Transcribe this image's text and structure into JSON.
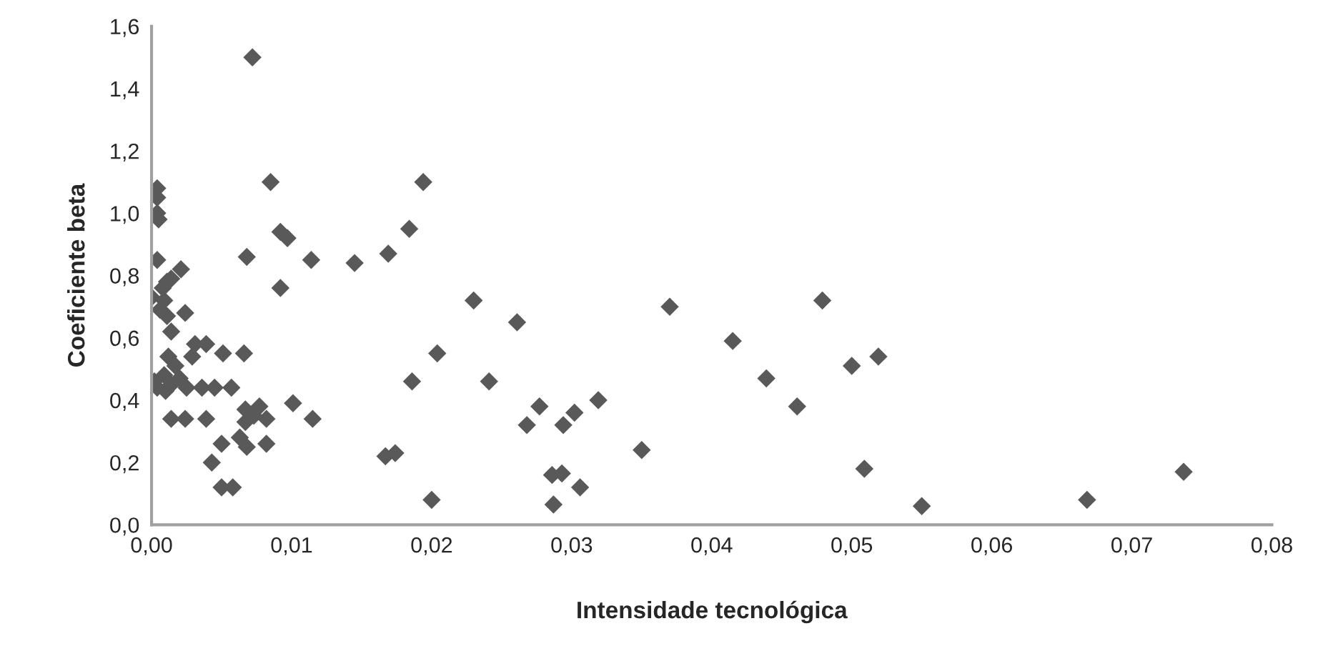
{
  "chart_data": {
    "type": "scatter",
    "xlabel": "Intensidade tecnológica",
    "ylabel": "Coeficiente beta",
    "xlim": [
      0,
      0.08
    ],
    "ylim": [
      0,
      1.6
    ],
    "xticks": [
      {
        "value": 0,
        "label": "0,00"
      },
      {
        "value": 0.01,
        "label": "0,01"
      },
      {
        "value": 0.02,
        "label": "0,02"
      },
      {
        "value": 0.03,
        "label": "0,03"
      },
      {
        "value": 0.04,
        "label": "0,04"
      },
      {
        "value": 0.05,
        "label": "0,05"
      },
      {
        "value": 0.06,
        "label": "0,06"
      },
      {
        "value": 0.07,
        "label": "0,07"
      },
      {
        "value": 0.08,
        "label": "0,08"
      }
    ],
    "yticks": [
      {
        "value": 0,
        "label": "0,0"
      },
      {
        "value": 0.2,
        "label": "0,2"
      },
      {
        "value": 0.4,
        "label": "0,4"
      },
      {
        "value": 0.6,
        "label": "0,6"
      },
      {
        "value": 0.8,
        "label": "0,8"
      },
      {
        "value": 1.0,
        "label": "1,0"
      },
      {
        "value": 1.2,
        "label": "1,2"
      },
      {
        "value": 1.4,
        "label": "1,4"
      },
      {
        "value": 1.6,
        "label": "1,6"
      }
    ],
    "grid": false,
    "marker": "diamond",
    "series": [
      {
        "color": "#595959",
        "x": [
          0.0072,
          0.0085,
          0.0092,
          0.0097,
          0.0068,
          0.0114,
          0.0145,
          0.0092,
          0.0004,
          0.0004,
          0.0004,
          0.0005,
          0.0004,
          0.0021,
          0.0,
          0.0008,
          0.0011,
          0.0014,
          0.0006,
          0.0011,
          0.0024,
          0.0014,
          0.0009,
          0.0031,
          0.0039,
          0.0029,
          0.0051,
          0.0066,
          0.0012,
          0.0017,
          0.0009,
          0.002,
          0.0004,
          0.0014,
          0.0025,
          0.001,
          0.0002,
          0.0036,
          0.0045,
          0.0057,
          0.0014,
          0.0024,
          0.0039,
          0.0115,
          0.0067,
          0.0077,
          0.0082,
          0.0067,
          0.0073,
          0.0101,
          0.005,
          0.0063,
          0.0068,
          0.0082,
          0.0043,
          0.005,
          0.0058,
          0.0194,
          0.0184,
          0.0169,
          0.023,
          0.0261,
          0.037,
          0.0415,
          0.0439,
          0.0204,
          0.0186,
          0.0241,
          0.0277,
          0.0268,
          0.0294,
          0.0302,
          0.0319,
          0.035,
          0.0167,
          0.0174,
          0.02,
          0.0286,
          0.0293,
          0.0306,
          0.0287,
          0.0479,
          0.0461,
          0.05,
          0.0519,
          0.0509,
          0.055,
          0.0668,
          0.0737
        ],
        "values": [
          1.5,
          1.1,
          0.94,
          0.92,
          0.86,
          0.85,
          0.84,
          0.76,
          1.08,
          1.05,
          1.0,
          0.98,
          0.85,
          0.82,
          0.73,
          0.76,
          0.78,
          0.79,
          0.69,
          0.67,
          0.68,
          0.62,
          0.72,
          0.58,
          0.58,
          0.54,
          0.55,
          0.55,
          0.54,
          0.51,
          0.48,
          0.47,
          0.44,
          0.45,
          0.44,
          0.43,
          0.46,
          0.44,
          0.44,
          0.44,
          0.34,
          0.34,
          0.34,
          0.34,
          0.37,
          0.38,
          0.34,
          0.33,
          0.35,
          0.39,
          0.26,
          0.28,
          0.25,
          0.26,
          0.2,
          0.12,
          0.12,
          1.1,
          0.95,
          0.87,
          0.72,
          0.65,
          0.7,
          0.59,
          0.47,
          0.55,
          0.46,
          0.46,
          0.38,
          0.32,
          0.32,
          0.36,
          0.4,
          0.24,
          0.22,
          0.23,
          0.08,
          0.16,
          0.165,
          0.12,
          0.065,
          0.72,
          0.38,
          0.51,
          0.54,
          0.18,
          0.06,
          0.08,
          0.17
        ]
      }
    ]
  }
}
